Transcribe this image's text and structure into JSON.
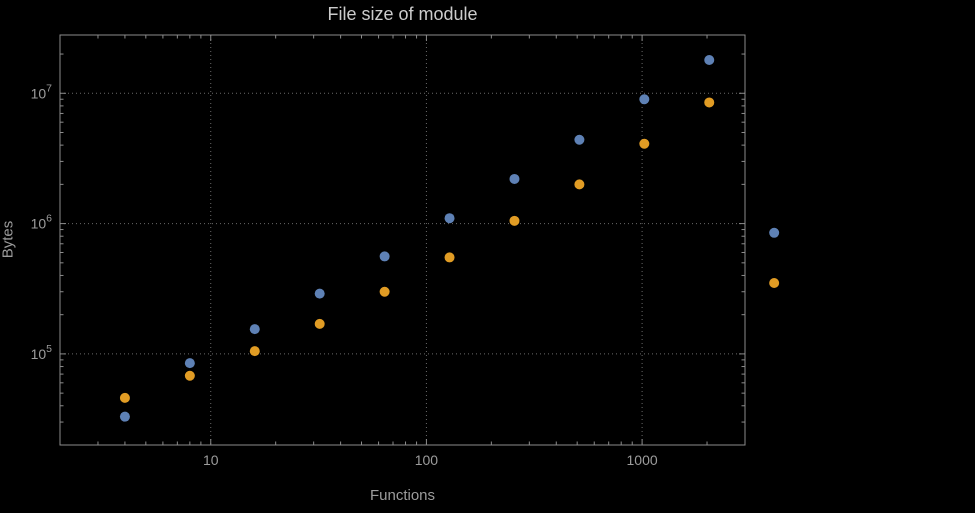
{
  "style": {
    "background": "#000000",
    "frame": "#8c8c8c",
    "grid": "#6a6a6a",
    "tick": "#8c8c8c",
    "label": "#9c9c9c",
    "title": "#cccccc"
  },
  "chart_data": {
    "type": "scatter",
    "title": "File size of module",
    "xlabel": "Functions",
    "ylabel": "Bytes",
    "xscale": "log",
    "yscale": "log",
    "xlim": [
      2,
      3000
    ],
    "ylim": [
      20000,
      28000000
    ],
    "xticks": [
      10,
      100,
      1000
    ],
    "yticks": [
      100000,
      1000000,
      10000000
    ],
    "grid": true,
    "legend": false,
    "x": [
      4,
      8,
      16,
      32,
      64,
      128,
      256,
      512,
      1024,
      2048,
      4096
    ],
    "series": [
      {
        "name": "blue",
        "color": "#5e81b5",
        "values": [
          33000,
          85000,
          155000,
          290000,
          560000,
          1100000,
          2200000,
          4400000,
          9000000,
          18000000,
          850000
        ]
      },
      {
        "name": "orange",
        "color": "#e19c24",
        "values": [
          46000,
          68000,
          105000,
          170000,
          300000,
          550000,
          1050000,
          2000000,
          4100000,
          8500000,
          350000
        ]
      }
    ]
  }
}
